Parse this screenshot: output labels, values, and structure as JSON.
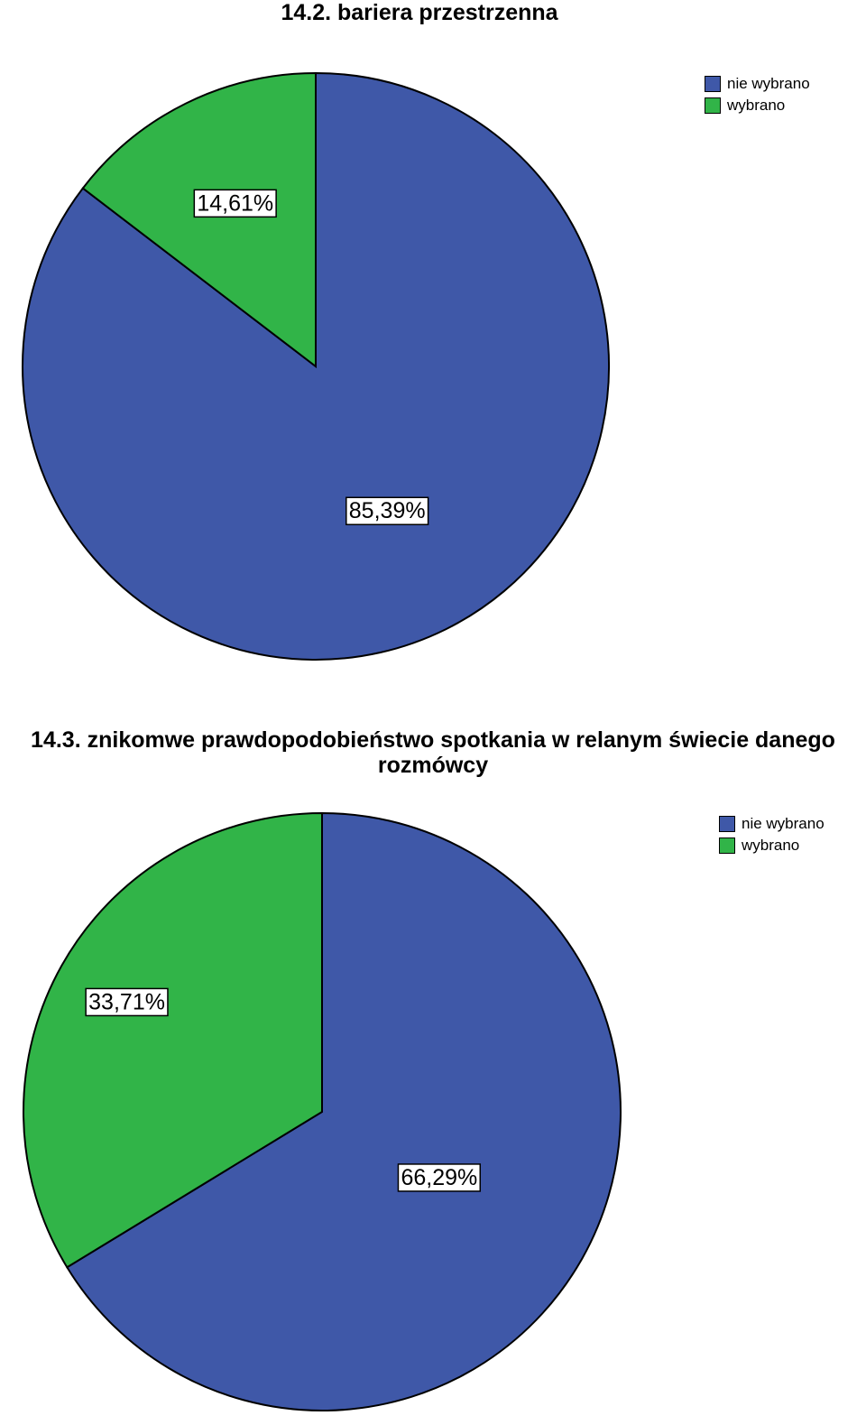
{
  "colors": {
    "nie_wybrano": "#3f58a8",
    "wybrano": "#31b448",
    "outline": "#000000"
  },
  "chart_data": [
    {
      "type": "pie",
      "title": "14.2. bariera przestrzenna",
      "legend_position": "top-right",
      "legend": [
        "nie wybrano",
        "wybrano"
      ],
      "slices": [
        {
          "label": "nie wybrano",
          "value": 85.39,
          "value_label": "85,39%"
        },
        {
          "label": "wybrano",
          "value": 14.61,
          "value_label": "14,61%"
        }
      ]
    },
    {
      "type": "pie",
      "title": "14.3. znikomwe prawdopodobieństwo spotkania w relanym świecie danego\nrozmówcy",
      "legend_position": "top-right",
      "legend": [
        "nie wybrano",
        "wybrano"
      ],
      "slices": [
        {
          "label": "nie wybrano",
          "value": 66.29,
          "value_label": "66,29%"
        },
        {
          "label": "wybrano",
          "value": 33.71,
          "value_label": "33,71%"
        }
      ]
    }
  ]
}
